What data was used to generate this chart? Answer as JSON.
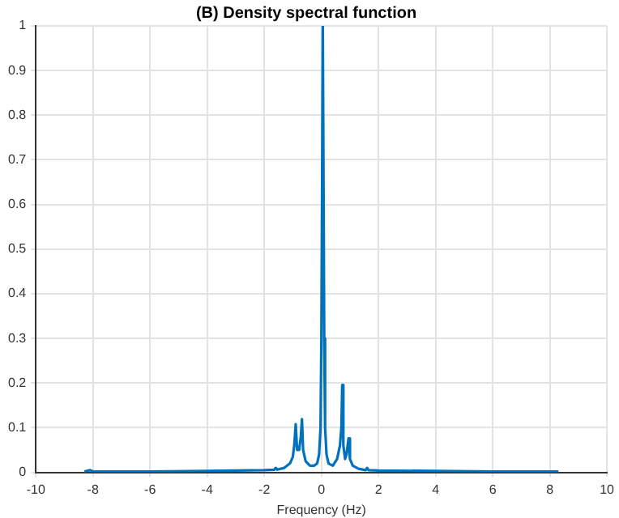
{
  "chart_data": {
    "type": "line",
    "title": "(B) Density spectral function",
    "xlabel": "Frequency (Hz)",
    "x": [
      -8.3,
      -8.1,
      -8.0,
      -6,
      -4,
      -2,
      -1.65,
      -1.6,
      -1.55,
      -1.3,
      -1.1,
      -1.0,
      -0.95,
      -0.9,
      -0.85,
      -0.78,
      -0.72,
      -0.68,
      -0.64,
      -0.55,
      -0.4,
      -0.25,
      -0.15,
      -0.08,
      -0.03,
      0.0,
      0.05,
      0.1,
      0.13,
      0.18,
      0.25,
      0.4,
      0.55,
      0.65,
      0.7,
      0.73,
      0.77,
      0.83,
      0.88,
      0.95,
      1.0,
      1.1,
      1.3,
      1.55,
      1.6,
      1.65,
      2,
      4,
      6,
      8.3
    ],
    "series": [
      {
        "color": "#0072bd",
        "values": [
          0.002,
          0.005,
          0.002,
          0.002,
          0.003,
          0.005,
          0.006,
          0.01,
          0.006,
          0.01,
          0.02,
          0.035,
          0.06,
          0.108,
          0.05,
          0.05,
          0.08,
          0.119,
          0.05,
          0.025,
          0.015,
          0.015,
          0.02,
          0.04,
          0.1,
          0.3,
          1.0,
          0.3,
          0.1,
          0.04,
          0.02,
          0.015,
          0.03,
          0.06,
          0.1,
          0.196,
          0.06,
          0.03,
          0.04,
          0.076,
          0.03,
          0.015,
          0.008,
          0.005,
          0.01,
          0.005,
          0.004,
          0.003,
          0.002,
          0.002
        ]
      }
    ],
    "xlim": [
      -10,
      10
    ],
    "xticks": [
      -10,
      -8,
      -6,
      -4,
      -2,
      0,
      2,
      4,
      6,
      8,
      10
    ],
    "ylim": [
      0,
      1
    ],
    "yticks": [
      0,
      0.1,
      0.2,
      0.3,
      0.4,
      0.5,
      0.6,
      0.7,
      0.8,
      0.9,
      1
    ],
    "grid": true,
    "legend": false,
    "marker": "none",
    "line_style": "solid"
  }
}
